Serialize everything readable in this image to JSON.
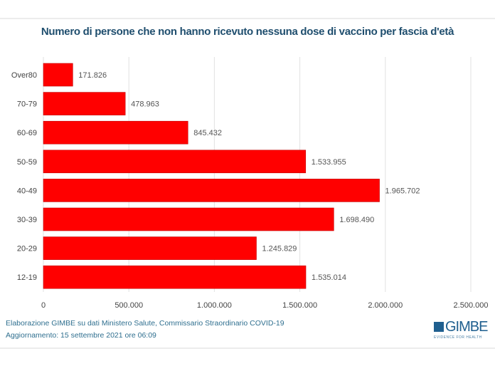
{
  "chart_data": {
    "type": "bar",
    "orientation": "horizontal",
    "title": "Numero di persone che non hanno ricevuto nessuna dose di vaccino per fascia d'età",
    "categories": [
      "Over80",
      "70-79",
      "60-69",
      "50-59",
      "40-49",
      "30-39",
      "20-29",
      "12-19"
    ],
    "values": [
      171826,
      478963,
      845432,
      1533955,
      1965702,
      1698490,
      1245829,
      1535014
    ],
    "value_labels": [
      "171.826",
      "478.963",
      "845.432",
      "1.533.955",
      "1.965.702",
      "1.698.490",
      "1.245.829",
      "1.535.014"
    ],
    "xticks": [
      0,
      500000,
      1000000,
      1500000,
      2000000,
      2500000
    ],
    "xtick_labels": [
      "0",
      "500.000",
      "1.000.000",
      "1.500.000",
      "2.000.000",
      "2.500.000"
    ],
    "xlim": [
      0,
      2500000
    ],
    "grid": true,
    "bar_color": "#ff0000",
    "xlabel": "",
    "ylabel": ""
  },
  "footer": {
    "source": "Elaborazione GIMBE su dati Ministero Salute, Commissario Straordinario COVID-19",
    "updated": "Aggiornamento:  15 settembre 2021 ore 06:09"
  },
  "logo": {
    "name": "GIMBE",
    "tagline": "EVIDENCE FOR HEALTH"
  }
}
